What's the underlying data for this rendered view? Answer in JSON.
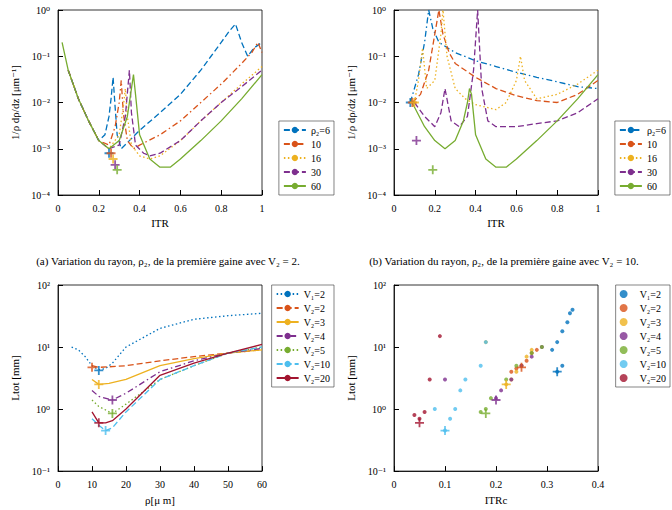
{
  "chart_data": [
    {
      "type": "line",
      "caption": "(a) Variation du rayon, ρ₂, de la première gaine avec V₂ = 2.",
      "x_label": "ITR",
      "y_label": "1/ρ dρ/dz [μm⁻¹]",
      "log": "y",
      "grid": false,
      "legend": "lower right",
      "xlim": [
        0,
        1
      ],
      "xticks": [
        0,
        0.2,
        0.4,
        0.6,
        0.8,
        1
      ],
      "ylim": [
        0.0001,
        1
      ],
      "yticks": [
        {
          "value": 0.0001,
          "label": "10⁻⁴"
        },
        {
          "value": 0.001,
          "label": "10⁻³"
        },
        {
          "value": 0.01,
          "label": "10⁻²"
        },
        {
          "value": 0.1,
          "label": "10⁻¹"
        },
        {
          "value": 1,
          "label": "10⁰"
        }
      ],
      "series": [
        {
          "name": "ρ₂=6",
          "color": "#0072BD",
          "line_style": "dashed",
          "x": [
            0.05,
            0.1,
            0.15,
            0.2,
            0.23,
            0.25,
            0.26,
            0.27,
            0.28,
            0.29,
            0.31,
            0.35,
            0.4,
            0.5,
            0.6,
            0.7,
            0.75,
            0.8,
            0.84,
            0.87,
            0.9,
            0.93,
            0.96,
            1
          ],
          "values": [
            0.05,
            0.012,
            0.004,
            0.0015,
            0.002,
            0.005,
            0.012,
            0.035,
            0.008,
            0.002,
            0.001,
            0.0015,
            0.0025,
            0.006,
            0.015,
            0.05,
            0.1,
            0.2,
            0.35,
            0.5,
            0.2,
            0.1,
            0.15,
            0.2
          ],
          "marker_point": [
            0.25,
            0.0008
          ]
        },
        {
          "name": "10",
          "color": "#D95319",
          "line_style": "dashdot",
          "x": [
            0.05,
            0.1,
            0.15,
            0.2,
            0.25,
            0.28,
            0.3,
            0.31,
            0.32,
            0.34,
            0.37,
            0.4,
            0.5,
            0.6,
            0.7,
            0.8,
            0.9,
            0.95,
            0.98,
            1
          ],
          "values": [
            0.05,
            0.012,
            0.004,
            0.0015,
            0.0012,
            0.003,
            0.01,
            0.03,
            0.006,
            0.0015,
            0.001,
            0.0012,
            0.002,
            0.004,
            0.01,
            0.025,
            0.07,
            0.12,
            0.2,
            0.12
          ],
          "marker_point": [
            0.26,
            0.0008
          ]
        },
        {
          "name": "16",
          "color": "#EDB120",
          "line_style": "dotted",
          "x": [
            0.05,
            0.1,
            0.15,
            0.2,
            0.25,
            0.3,
            0.32,
            0.33,
            0.34,
            0.36,
            0.4,
            0.45,
            0.5,
            0.6,
            0.7,
            0.8,
            0.9,
            1
          ],
          "values": [
            0.05,
            0.012,
            0.004,
            0.0015,
            0.001,
            0.002,
            0.008,
            0.02,
            0.005,
            0.0012,
            0.0007,
            0.0006,
            0.0007,
            0.0015,
            0.004,
            0.01,
            0.025,
            0.06
          ],
          "marker_point": [
            0.27,
            0.0006
          ]
        },
        {
          "name": "30",
          "color": "#7E2F8E",
          "line_style": "dashed",
          "x": [
            0.05,
            0.1,
            0.15,
            0.2,
            0.25,
            0.3,
            0.33,
            0.35,
            0.36,
            0.38,
            0.42,
            0.45,
            0.5,
            0.6,
            0.7,
            0.8,
            0.9,
            1
          ],
          "values": [
            0.05,
            0.012,
            0.004,
            0.0015,
            0.001,
            0.0012,
            0.005,
            0.05,
            0.006,
            0.0012,
            0.0008,
            0.0007,
            0.0008,
            0.0015,
            0.004,
            0.01,
            0.022,
            0.05
          ],
          "marker_point": [
            0.28,
            0.00045
          ]
        },
        {
          "name": "60",
          "color": "#77AC30",
          "line_style": "solid",
          "x": [
            0.02,
            0.05,
            0.1,
            0.15,
            0.2,
            0.25,
            0.3,
            0.34,
            0.36,
            0.37,
            0.38,
            0.4,
            0.45,
            0.5,
            0.55,
            0.6,
            0.7,
            0.8,
            0.9,
            1
          ],
          "values": [
            0.2,
            0.05,
            0.012,
            0.004,
            0.0015,
            0.001,
            0.0015,
            0.005,
            0.02,
            0.04,
            0.015,
            0.002,
            0.0006,
            0.0004,
            0.0004,
            0.0006,
            0.0015,
            0.004,
            0.012,
            0.04
          ],
          "marker_point": [
            0.29,
            0.00035
          ]
        }
      ]
    },
    {
      "type": "line",
      "caption": "(b) Variation du rayon, ρ₂, de la première gaine avec V₂ = 10.",
      "x_label": "ITR",
      "y_label": "1/ρ dρ/dz [μm⁻¹]",
      "log": "y",
      "grid": false,
      "legend": "lower right",
      "xlim": [
        0,
        1
      ],
      "xticks": [
        0,
        0.2,
        0.4,
        0.6,
        0.8,
        1
      ],
      "ylim": [
        0.0001,
        1
      ],
      "yticks": [
        {
          "value": 0.0001,
          "label": "10⁻⁴"
        },
        {
          "value": 0.001,
          "label": "10⁻³"
        },
        {
          "value": 0.01,
          "label": "10⁻²"
        },
        {
          "value": 0.1,
          "label": "10⁻¹"
        },
        {
          "value": 1,
          "label": "10⁰"
        }
      ],
      "series": [
        {
          "name": "ρ₂=6",
          "color": "#0072BD",
          "line_style": "dashdot",
          "x": [
            0.08,
            0.12,
            0.15,
            0.17,
            0.19,
            0.22,
            0.3,
            0.4,
            0.5,
            0.6,
            0.7,
            0.8,
            0.9,
            1
          ],
          "values": [
            0.01,
            0.04,
            0.2,
            1,
            0.4,
            0.2,
            0.12,
            0.08,
            0.06,
            0.045,
            0.035,
            0.028,
            0.022,
            0.02
          ],
          "marker_point": [
            0.08,
            0.01
          ]
        },
        {
          "name": "10",
          "color": "#D95319",
          "line_style": "dashed",
          "x": [
            0.09,
            0.13,
            0.17,
            0.2,
            0.22,
            0.24,
            0.27,
            0.3,
            0.4,
            0.5,
            0.6,
            0.7,
            0.8,
            0.9,
            1
          ],
          "values": [
            0.01,
            0.015,
            0.05,
            0.3,
            1,
            0.3,
            0.12,
            0.07,
            0.035,
            0.02,
            0.014,
            0.011,
            0.01,
            0.015,
            0.03
          ],
          "marker_point": [
            0.09,
            0.01
          ]
        },
        {
          "name": "16",
          "color": "#EDB120",
          "line_style": "dotted",
          "x": [
            0.1,
            0.12,
            0.14,
            0.16,
            0.2,
            0.23,
            0.24,
            0.26,
            0.3,
            0.35,
            0.4,
            0.5,
            0.55,
            0.6,
            0.62,
            0.64,
            0.7,
            0.8,
            0.9,
            1
          ],
          "values": [
            0.01,
            0.03,
            0.15,
            0.02,
            0.03,
            0.3,
            1,
            0.1,
            0.02,
            0.012,
            0.009,
            0.007,
            0.01,
            0.03,
            0.1,
            0.03,
            0.012,
            0.015,
            0.025,
            0.05
          ],
          "marker_point": [
            0.1,
            0.01
          ]
        },
        {
          "name": "30",
          "color": "#7E2F8E",
          "line_style": "dashed",
          "x": [
            0.1,
            0.15,
            0.2,
            0.23,
            0.25,
            0.28,
            0.32,
            0.36,
            0.39,
            0.41,
            0.43,
            0.46,
            0.5,
            0.6,
            0.7,
            0.8,
            0.9,
            1
          ],
          "values": [
            0.01,
            0.005,
            0.003,
            0.006,
            0.02,
            0.004,
            0.003,
            0.005,
            0.05,
            1,
            0.02,
            0.004,
            0.003,
            0.003,
            0.0035,
            0.004,
            0.006,
            0.012
          ],
          "marker_point": [
            0.11,
            0.0015
          ]
        },
        {
          "name": "60",
          "color": "#77AC30",
          "line_style": "solid",
          "x": [
            0.08,
            0.1,
            0.15,
            0.2,
            0.25,
            0.3,
            0.34,
            0.36,
            0.37,
            0.38,
            0.4,
            0.45,
            0.5,
            0.55,
            0.6,
            0.7,
            0.8,
            0.9,
            1
          ],
          "values": [
            0.012,
            0.008,
            0.003,
            0.0015,
            0.001,
            0.0015,
            0.004,
            0.01,
            0.02,
            0.015,
            0.002,
            0.0006,
            0.0004,
            0.0004,
            0.0006,
            0.0015,
            0.004,
            0.012,
            0.04
          ],
          "marker_point": [
            0.19,
            0.00035
          ]
        }
      ]
    },
    {
      "type": "line",
      "x_label": "ρ[μ m]",
      "y_label": "Ltot [mm]",
      "log": "y",
      "grid": false,
      "legend": "upper right",
      "xlim": [
        0,
        60
      ],
      "xticks": [
        0,
        10,
        20,
        30,
        40,
        50,
        60
      ],
      "ylim": [
        0.1,
        100
      ],
      "yticks": [
        {
          "value": 0.1,
          "label": "10⁻¹"
        },
        {
          "value": 1,
          "label": "10⁰"
        },
        {
          "value": 10,
          "label": "10¹"
        },
        {
          "value": 100,
          "label": "10²"
        }
      ],
      "series": [
        {
          "name": "V₁=2",
          "color": "#0072BD",
          "line_style": "dotted",
          "x": [
            4,
            6,
            8,
            10,
            12,
            14,
            16,
            20,
            30,
            40,
            50,
            60
          ],
          "values": [
            10,
            9,
            7,
            5,
            4.3,
            4.5,
            5.5,
            10,
            20,
            28,
            32,
            35
          ],
          "marker_point": [
            12,
            4.2
          ]
        },
        {
          "name": "V₂=2",
          "color": "#D95319",
          "line_style": "dashed",
          "x": [
            10,
            12,
            15,
            20,
            30,
            40,
            50,
            60
          ],
          "values": [
            5,
            4.7,
            4.8,
            5,
            6,
            7,
            8,
            9
          ],
          "marker_point": [
            10,
            4.7
          ]
        },
        {
          "name": "V₂=3",
          "color": "#EDB120",
          "line_style": "solid",
          "x": [
            10,
            12,
            15,
            20,
            30,
            40,
            50,
            60
          ],
          "values": [
            3,
            2.5,
            2.6,
            3,
            5,
            6.5,
            8,
            9
          ],
          "marker_point": [
            12,
            2.5
          ]
        },
        {
          "name": "V₂=4",
          "color": "#7E2F8E",
          "line_style": "dashdot",
          "x": [
            10,
            12,
            16,
            20,
            30,
            40,
            50,
            60
          ],
          "values": [
            2,
            1.6,
            1.4,
            1.8,
            4,
            6,
            8,
            9.5
          ],
          "marker_point": [
            16,
            1.4
          ]
        },
        {
          "name": "V₂=5",
          "color": "#77AC30",
          "line_style": "dotted",
          "x": [
            10,
            12,
            16,
            20,
            30,
            40,
            50,
            60
          ],
          "values": [
            1.4,
            1.1,
            0.85,
            1.2,
            3,
            5,
            8,
            10
          ],
          "marker_point": [
            16,
            0.85
          ]
        },
        {
          "name": "V₂=10",
          "color": "#4DBEEE",
          "line_style": "dashed",
          "x": [
            10,
            12,
            14,
            16,
            20,
            30,
            40,
            50,
            60
          ],
          "values": [
            0.7,
            0.55,
            0.45,
            0.5,
            0.9,
            3,
            5,
            8,
            10
          ],
          "marker_point": [
            14,
            0.45
          ]
        },
        {
          "name": "V₂=20",
          "color": "#A2142F",
          "line_style": "solid",
          "x": [
            10,
            12,
            14,
            16,
            20,
            30,
            40,
            50,
            60
          ],
          "values": [
            0.9,
            0.6,
            0.6,
            0.65,
            1,
            3.5,
            5.5,
            8,
            11
          ],
          "marker_point": [
            12,
            0.6
          ]
        }
      ]
    },
    {
      "type": "scatter",
      "marker": "circle",
      "x_label": "ITRc",
      "y_label": "Ltot [mm]",
      "log": "y",
      "grid": false,
      "legend": "upper right",
      "xlim": [
        0,
        0.4
      ],
      "xticks": [
        0,
        0.1,
        0.2,
        0.3,
        0.4
      ],
      "ylim": [
        0.1,
        100
      ],
      "yticks": [
        {
          "value": 0.1,
          "label": "10⁻¹"
        },
        {
          "value": 1,
          "label": "10⁰"
        },
        {
          "value": 10,
          "label": "10¹"
        },
        {
          "value": 100,
          "label": "10²"
        }
      ],
      "series": [
        {
          "name": "V₁=2",
          "color": "#0072BD",
          "x": [
            0.31,
            0.32,
            0.33,
            0.34,
            0.345,
            0.35,
            0.33,
            0.32
          ],
          "values": [
            9,
            12,
            18,
            25,
            35,
            40,
            5,
            4
          ],
          "marker_point": [
            0.32,
            4
          ]
        },
        {
          "name": "V₂=2",
          "color": "#D95319",
          "x": [
            0.23,
            0.24,
            0.25,
            0.26,
            0.27,
            0.28
          ],
          "values": [
            4,
            4.5,
            5,
            6,
            8,
            9
          ],
          "marker_point": [
            0.25,
            4.7
          ]
        },
        {
          "name": "V₂=3",
          "color": "#EDB120",
          "x": [
            0.18,
            0.22,
            0.23,
            0.24,
            0.25,
            0.26,
            0.27
          ],
          "values": [
            12,
            2.5,
            3,
            4,
            5,
            7,
            9
          ],
          "marker_point": [
            0.22,
            2.5
          ]
        },
        {
          "name": "V₂=4",
          "color": "#7E2F8E",
          "x": [
            0.1,
            0.2,
            0.21,
            0.23,
            0.25,
            0.27,
            0.29
          ],
          "values": [
            3,
            1.5,
            2,
            3,
            5,
            7,
            10
          ],
          "marker_point": [
            0.2,
            1.4
          ]
        },
        {
          "name": "V₂=5",
          "color": "#77AC30",
          "x": [
            0.17,
            0.18,
            0.19,
            0.22,
            0.24,
            0.27,
            0.29
          ],
          "values": [
            0.9,
            1,
            1.5,
            3,
            5,
            8,
            10
          ],
          "marker_point": [
            0.18,
            0.85
          ]
        },
        {
          "name": "V₂=10",
          "color": "#4DBEEE",
          "x": [
            0.08,
            0.1,
            0.11,
            0.12,
            0.13,
            0.14,
            0.17,
            0.18
          ],
          "values": [
            1,
            0.45,
            0.7,
            1,
            2,
            3,
            5,
            12
          ],
          "marker_point": [
            0.1,
            0.45
          ]
        },
        {
          "name": "V₂=20",
          "color": "#A2142F",
          "x": [
            0.04,
            0.05,
            0.06,
            0.07,
            0.09
          ],
          "values": [
            0.8,
            0.7,
            0.9,
            3,
            15
          ],
          "marker_point": [
            0.05,
            0.6
          ]
        }
      ]
    }
  ]
}
